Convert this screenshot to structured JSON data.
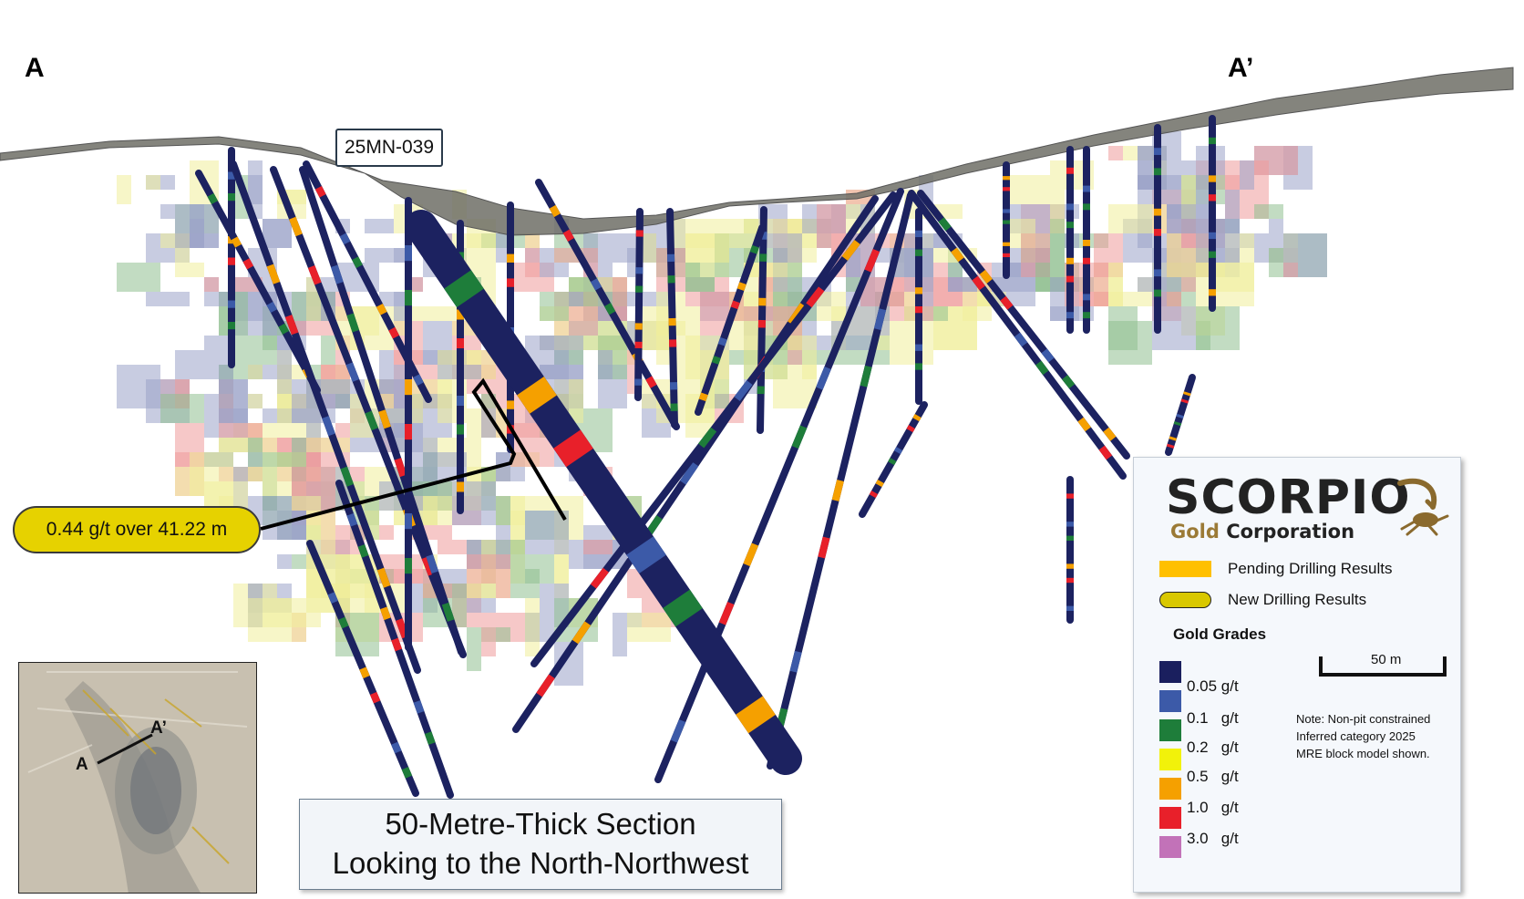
{
  "section": {
    "end_left": "A",
    "end_right": "A’",
    "hole_label": "25MN-039",
    "callout": "0.44 g/t over 41.22 m",
    "title_line1": "50-Metre-Thick Section",
    "title_line2": "Looking to the North-Northwest"
  },
  "inset_map": {
    "label_a": "A",
    "label_a_prime": "A’"
  },
  "legend": {
    "brand_name": "SCORPIO",
    "brand_sub_gold": "Gold",
    "brand_sub_corp": "Corporation",
    "pending_label": "Pending Drilling Results",
    "new_label": "New Drilling Results",
    "grades_title": "Gold Grades",
    "grades": [
      {
        "label": "0.05 g/t",
        "color": "#1a1f5e"
      },
      {
        "label": "0.1   g/t",
        "color": "#3c5aa8"
      },
      {
        "label": "0.2   g/t",
        "color": "#1e7d3a"
      },
      {
        "label": "0.5   g/t",
        "color": "#f2f20a"
      },
      {
        "label": "1.0   g/t",
        "color": "#f5a000"
      },
      {
        "label": "3.0   g/t",
        "color": "#e8202a"
      },
      {
        "label": "",
        "color": "#c272b8"
      }
    ],
    "scale_label": "50 m",
    "note": "Note: Non-pit constrained Inferred category 2025 MRE block model shown."
  },
  "colors": {
    "drill_hole": "#1c2260",
    "surface": "#6e6e66",
    "block_blue": "#9aa3c9",
    "block_yellow": "#f0ee9a",
    "block_red": "#ef9a9a",
    "block_green": "#8fbf8f"
  }
}
